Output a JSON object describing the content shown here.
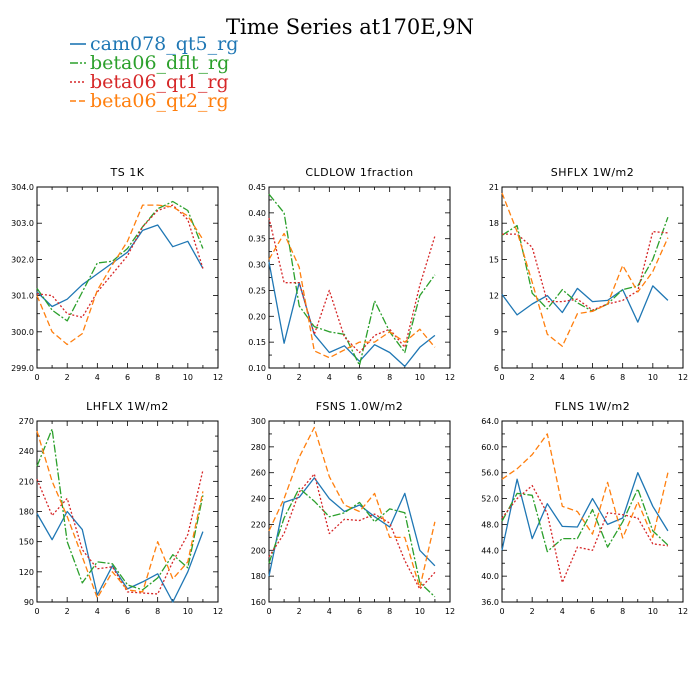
{
  "figure": {
    "title": "Time Series at170E,9N"
  },
  "colors": {
    "cam078_qt5_rg": "#1f77b4",
    "beta06_dflt_rg": "#2ca02c",
    "beta06_qt1_rg": "#d62728",
    "beta06_qt2_rg": "#ff7f0e"
  },
  "legend": [
    {
      "name": "cam078_qt5_rg",
      "color": "#1f77b4",
      "dash": ""
    },
    {
      "name": "beta06_dflt_rg",
      "color": "#2ca02c",
      "dash": "8,2,2,2"
    },
    {
      "name": "beta06_qt1_rg",
      "color": "#d62728",
      "dash": "2,2"
    },
    {
      "name": "beta06_qt2_rg",
      "color": "#ff7f0e",
      "dash": "6,3"
    }
  ],
  "chart_data": [
    {
      "type": "line",
      "title": "TS   1K",
      "x": [
        0,
        1,
        2,
        3,
        4,
        5,
        6,
        7,
        8,
        9,
        10,
        11
      ],
      "xlim": [
        0,
        12
      ],
      "xticks": [
        "0",
        "2",
        "4",
        "6",
        "8",
        "10",
        "12"
      ],
      "ylim": [
        299.0,
        304.0
      ],
      "yticks": [
        "299.0",
        "300.0",
        "301.0",
        "302.0",
        "303.0",
        "304.0"
      ],
      "series": [
        {
          "name": "cam078_qt5_rg",
          "values": [
            301.1,
            300.7,
            300.9,
            301.3,
            301.6,
            301.9,
            302.2,
            302.8,
            302.95,
            302.35,
            302.5,
            301.75
          ]
        },
        {
          "name": "beta06_dflt_rg",
          "values": [
            301.2,
            300.6,
            300.3,
            301.1,
            301.9,
            301.95,
            302.3,
            302.9,
            303.4,
            303.6,
            303.35,
            302.3
          ]
        },
        {
          "name": "beta06_qt1_rg",
          "values": [
            301.05,
            301.0,
            300.5,
            300.4,
            301.1,
            301.6,
            302.1,
            302.9,
            303.35,
            303.5,
            303.1,
            301.75
          ]
        },
        {
          "name": "beta06_qt2_rg",
          "values": [
            301.0,
            300.0,
            299.65,
            299.95,
            301.15,
            301.85,
            302.5,
            303.5,
            303.5,
            303.45,
            303.2,
            302.55
          ]
        }
      ]
    },
    {
      "type": "line",
      "title": "CLDLOW   1fraction",
      "x": [
        0,
        1,
        2,
        3,
        4,
        5,
        6,
        7,
        8,
        9,
        10,
        11
      ],
      "xlim": [
        0,
        12
      ],
      "xticks": [
        "0",
        "2",
        "4",
        "6",
        "8",
        "10",
        "12"
      ],
      "ylim": [
        0.1,
        0.45
      ],
      "yticks": [
        "0.10",
        "0.15",
        "0.20",
        "0.25",
        "0.30",
        "0.35",
        "0.40",
        "0.45"
      ],
      "series": [
        {
          "name": "cam078_qt5_rg",
          "values": [
            0.305,
            0.148,
            0.265,
            0.165,
            0.13,
            0.143,
            0.113,
            0.145,
            0.13,
            0.103,
            0.14,
            0.163
          ]
        },
        {
          "name": "beta06_dflt_rg",
          "values": [
            0.436,
            0.4,
            0.22,
            0.18,
            0.17,
            0.165,
            0.105,
            0.23,
            0.17,
            0.13,
            0.24,
            0.28
          ]
        },
        {
          "name": "beta06_qt1_rg",
          "values": [
            0.39,
            0.265,
            0.265,
            0.165,
            0.25,
            0.16,
            0.13,
            0.163,
            0.175,
            0.14,
            0.26,
            0.355
          ]
        },
        {
          "name": "beta06_qt2_rg",
          "values": [
            0.31,
            0.36,
            0.295,
            0.133,
            0.12,
            0.135,
            0.15,
            0.15,
            0.17,
            0.15,
            0.175,
            0.14
          ]
        }
      ]
    },
    {
      "type": "line",
      "title": "SHFLX   1W/m2",
      "x": [
        0,
        1,
        2,
        3,
        4,
        5,
        6,
        7,
        8,
        9,
        10,
        11
      ],
      "xlim": [
        0,
        12
      ],
      "xticks": [
        "0",
        "2",
        "4",
        "6",
        "8",
        "10",
        "12"
      ],
      "ylim": [
        6,
        21
      ],
      "yticks": [
        "6",
        "9",
        "12",
        "15",
        "18",
        "21"
      ],
      "series": [
        {
          "name": "cam078_qt5_rg",
          "values": [
            12.1,
            10.4,
            11.3,
            12.0,
            10.6,
            12.6,
            11.5,
            11.6,
            12.5,
            9.8,
            12.8,
            11.6
          ]
        },
        {
          "name": "beta06_dflt_rg",
          "values": [
            17.0,
            17.8,
            12.2,
            10.9,
            12.5,
            11.4,
            10.7,
            11.3,
            12.5,
            12.8,
            15.0,
            18.5
          ]
        },
        {
          "name": "beta06_qt1_rg",
          "values": [
            17.1,
            17.1,
            16.0,
            11.5,
            11.5,
            11.7,
            10.8,
            11.3,
            11.6,
            12.4,
            17.3,
            17.2
          ]
        },
        {
          "name": "beta06_qt2_rg",
          "values": [
            20.5,
            17.3,
            13.1,
            8.8,
            7.8,
            10.5,
            10.7,
            11.3,
            14.5,
            12.3,
            14.0,
            16.8
          ]
        }
      ]
    },
    {
      "type": "line",
      "title": "LHFLX   1W/m2",
      "x": [
        0,
        1,
        2,
        3,
        4,
        5,
        6,
        7,
        8,
        9,
        10,
        11
      ],
      "xlim": [
        0,
        12
      ],
      "xticks": [
        "0",
        "2",
        "4",
        "6",
        "8",
        "10",
        "12"
      ],
      "ylim": [
        90,
        270
      ],
      "yticks": [
        "90",
        "120",
        "150",
        "180",
        "210",
        "240",
        "270"
      ],
      "series": [
        {
          "name": "cam078_qt5_rg",
          "values": [
            178,
            152,
            180,
            162,
            97,
            126,
            103,
            110,
            118,
            90,
            120,
            160
          ]
        },
        {
          "name": "beta06_dflt_rg",
          "values": [
            225,
            262,
            150,
            109,
            130,
            128,
            107,
            102,
            114,
            137,
            124,
            196
          ]
        },
        {
          "name": "beta06_qt1_rg",
          "values": [
            212,
            176,
            193,
            142,
            123,
            125,
            100,
            99,
            98,
            130,
            157,
            221
          ]
        },
        {
          "name": "beta06_qt2_rg",
          "values": [
            260,
            210,
            175,
            135,
            94,
            120,
            102,
            100,
            150,
            113,
            130,
            200
          ]
        }
      ]
    },
    {
      "type": "line",
      "title": "FSNS   1.0W/m2",
      "x": [
        0,
        1,
        2,
        3,
        4,
        5,
        6,
        7,
        8,
        9,
        10,
        11
      ],
      "xlim": [
        0,
        12
      ],
      "xticks": [
        "0",
        "2",
        "4",
        "6",
        "8",
        "10",
        "12"
      ],
      "ylim": [
        160,
        300
      ],
      "yticks": [
        "160",
        "180",
        "200",
        "220",
        "240",
        "260",
        "280",
        "300"
      ],
      "series": [
        {
          "name": "cam078_qt5_rg",
          "values": [
            180,
            237,
            241,
            256,
            240,
            230,
            235,
            226,
            218,
            244,
            200,
            188
          ]
        },
        {
          "name": "beta06_dflt_rg",
          "values": [
            190,
            225,
            248,
            238,
            226,
            229,
            237,
            222,
            232,
            229,
            175,
            164
          ]
        },
        {
          "name": "beta06_qt1_rg",
          "values": [
            195,
            213,
            245,
            259,
            213,
            224,
            223,
            228,
            221,
            192,
            170,
            183
          ]
        },
        {
          "name": "beta06_qt2_rg",
          "values": [
            215,
            240,
            272,
            295,
            257,
            235,
            230,
            244,
            210,
            210,
            171,
            222
          ]
        }
      ]
    },
    {
      "type": "line",
      "title": "FLNS   1W/m2",
      "x": [
        0,
        1,
        2,
        3,
        4,
        5,
        6,
        7,
        8,
        9,
        10,
        11
      ],
      "xlim": [
        0,
        12
      ],
      "xticks": [
        "0",
        "2",
        "4",
        "6",
        "8",
        "10",
        "12"
      ],
      "ylim": [
        36.0,
        64.0
      ],
      "yticks": [
        "36.0",
        "40.0",
        "44.0",
        "48.0",
        "52.0",
        "56.0",
        "60.0",
        "64.0"
      ],
      "series": [
        {
          "name": "cam078_qt5_rg",
          "values": [
            44.0,
            55.0,
            45.8,
            51.2,
            47.7,
            47.6,
            52.0,
            48.0,
            49.0,
            56.0,
            50.8,
            47.0
          ]
        },
        {
          "name": "beta06_dflt_rg",
          "values": [
            48.5,
            52.8,
            52.5,
            43.8,
            45.8,
            45.8,
            50.3,
            44.5,
            48.4,
            53.5,
            47.0,
            44.8
          ]
        },
        {
          "name": "beta06_qt1_rg",
          "values": [
            49.0,
            52.0,
            54.0,
            49.7,
            39.0,
            44.5,
            44.0,
            49.8,
            49.5,
            49.0,
            45.0,
            44.7
          ]
        },
        {
          "name": "beta06_qt2_rg",
          "values": [
            55.0,
            56.6,
            58.8,
            62.0,
            50.8,
            50.0,
            46.5,
            54.5,
            45.9,
            51.5,
            46.0,
            56.0
          ]
        }
      ]
    }
  ]
}
